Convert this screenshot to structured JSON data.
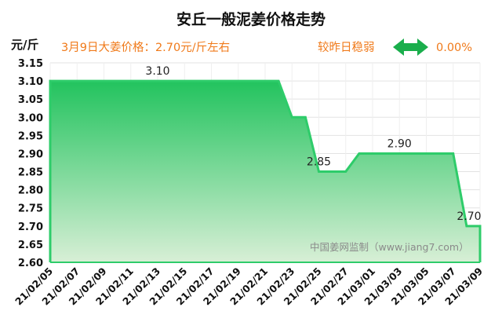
{
  "chart_data": {
    "type": "area",
    "title": "安丘一般泥姜价格走势",
    "unit_label": "元/斤",
    "price_note": "3月9日大姜价格：2.70元/斤左右",
    "compare_note": "较昨日稳弱",
    "compare_pct": "0.00%",
    "watermark": "中国姜网监制（www.jiang7.com）",
    "ylim": [
      2.6,
      3.15
    ],
    "y_ticks": [
      "3.15",
      "3.10",
      "3.05",
      "3.00",
      "2.95",
      "2.90",
      "2.85",
      "2.80",
      "2.75",
      "2.70",
      "2.65",
      "2.60"
    ],
    "x_ticks": [
      "21/02/05",
      "21/02/07",
      "21/02/09",
      "21/02/11",
      "21/02/13",
      "21/02/15",
      "21/02/17",
      "21/02/19",
      "21/02/21",
      "21/02/23",
      "21/02/25",
      "21/02/27",
      "21/03/01",
      "21/03/03",
      "21/03/05",
      "21/03/07",
      "21/03/09"
    ],
    "x": [
      "21/02/05",
      "21/02/06",
      "21/02/07",
      "21/02/08",
      "21/02/09",
      "21/02/10",
      "21/02/11",
      "21/02/12",
      "21/02/13",
      "21/02/14",
      "21/02/15",
      "21/02/16",
      "21/02/17",
      "21/02/18",
      "21/02/19",
      "21/02/20",
      "21/02/21",
      "21/02/22",
      "21/02/23",
      "21/02/24",
      "21/02/25",
      "21/02/26",
      "21/02/27",
      "21/02/28",
      "21/03/01",
      "21/03/02",
      "21/03/03",
      "21/03/04",
      "21/03/05",
      "21/03/06",
      "21/03/07",
      "21/03/08",
      "21/03/09"
    ],
    "values": [
      3.1,
      3.1,
      3.1,
      3.1,
      3.1,
      3.1,
      3.1,
      3.1,
      3.1,
      3.1,
      3.1,
      3.1,
      3.1,
      3.1,
      3.1,
      3.1,
      3.1,
      3.1,
      3.0,
      3.0,
      2.85,
      2.85,
      2.85,
      2.9,
      2.9,
      2.9,
      2.9,
      2.9,
      2.9,
      2.9,
      2.9,
      2.7,
      2.7
    ],
    "data_labels": [
      {
        "x": "21/02/13",
        "text": "3.10"
      },
      {
        "x": "21/02/25",
        "text": "2.85"
      },
      {
        "x": "21/03/03",
        "text": "2.90"
      },
      {
        "x": "21/03/09",
        "text": "2.70"
      }
    ],
    "colors": {
      "line": "#2ecc6a",
      "fill_top": "#22c35e",
      "fill_bottom": "#d8efd6",
      "arrow": "#1aae4c",
      "accent_text": "#f07a1a"
    }
  }
}
